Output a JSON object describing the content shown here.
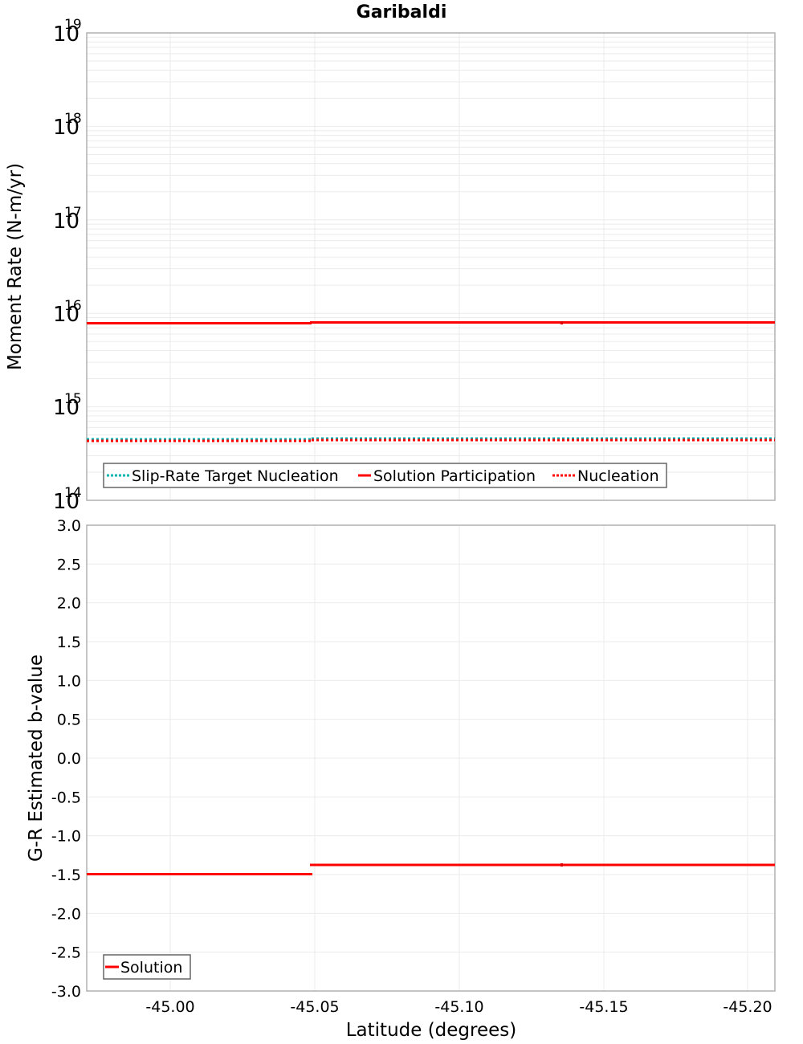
{
  "chart_data": [
    {
      "type": "line",
      "title": "Garibaldi",
      "xlabel": "Latitude (degrees)",
      "ylabel": "Moment Rate (N-m/yr)",
      "yscale": "log",
      "ylim": [
        100000000000000.0,
        1e+19
      ],
      "xlim": [
        -44.971,
        -45.209
      ],
      "x_reversed": true,
      "ytick_labels": [
        {
          "base": "10",
          "exp": "19",
          "value": 1e+19
        },
        {
          "base": "10",
          "exp": "18",
          "value": 1e+18
        },
        {
          "base": "10",
          "exp": "17",
          "value": 1e+17
        },
        {
          "base": "10",
          "exp": "16",
          "value": 1e+16
        },
        {
          "base": "10",
          "exp": "15",
          "value": 1000000000000000.0
        },
        {
          "base": "10",
          "exp": "14",
          "value": 100000000000000.0
        }
      ],
      "grid": true,
      "legend_position": "lower-left",
      "series": [
        {
          "name": "Slip-Rate Target Nucleation",
          "color": "#00b4b4",
          "style": "dotted",
          "segments": [
            {
              "x": [
                -44.971,
                -45.049
              ],
              "y": 430000000000000.0
            },
            {
              "x": [
                -45.049,
                -45.209
              ],
              "y": 440000000000000.0
            }
          ]
        },
        {
          "name": "Solution Participation",
          "color": "#ff0000",
          "style": "solid",
          "segments": [
            {
              "x": [
                -44.971,
                -45.049
              ],
              "y": 7700000000000000.0
            },
            {
              "x": [
                -45.049,
                -45.209
              ],
              "y": 7900000000000000.0
            }
          ]
        },
        {
          "name": "Nucleation",
          "color": "#ff0000",
          "style": "dotted",
          "segments": [
            {
              "x": [
                -44.971,
                -45.049
              ],
              "y": 420000000000000.0
            },
            {
              "x": [
                -45.049,
                -45.209
              ],
              "y": 440000000000000.0
            }
          ]
        }
      ]
    },
    {
      "type": "line",
      "title": "",
      "xlabel": "Latitude (degrees)",
      "ylabel": "G-R Estimated b-value",
      "ylim": [
        -3.0,
        3.0
      ],
      "xlim": [
        -44.971,
        -45.209
      ],
      "x_reversed": true,
      "yticks": [
        "3.0",
        "2.5",
        "2.0",
        "1.5",
        "1.0",
        "0.5",
        "0.0",
        "-0.5",
        "-1.0",
        "-1.5",
        "-2.0",
        "-2.5",
        "-3.0"
      ],
      "xticks": [
        "-45.00",
        "-45.05",
        "-45.10",
        "-45.15",
        "-45.20"
      ],
      "grid": true,
      "legend_position": "lower-left",
      "series": [
        {
          "name": "Solution",
          "color": "#ff0000",
          "style": "solid",
          "segments": [
            {
              "x": [
                -44.971,
                -45.049
              ],
              "y": -1.49
            },
            {
              "x": [
                -45.049,
                -45.209
              ],
              "y": -1.37
            }
          ]
        }
      ]
    }
  ],
  "labels": {
    "title": "Garibaldi",
    "top_ylabel": "Moment Rate (N-m/yr)",
    "bottom_ylabel": "G-R Estimated b-value",
    "xlabel": "Latitude (degrees)",
    "legend_top": [
      "Slip-Rate Target Nucleation",
      "Solution Participation",
      "Nucleation"
    ],
    "legend_bottom": [
      "Solution"
    ],
    "log_base": "10",
    "log_exps": [
      "19",
      "18",
      "17",
      "16",
      "15",
      "14"
    ],
    "yticks_bottom": [
      "3.0",
      "2.5",
      "2.0",
      "1.5",
      "1.0",
      "0.5",
      "0.0",
      "-0.5",
      "-1.0",
      "-1.5",
      "-2.0",
      "-2.5",
      "-3.0"
    ],
    "xticks": [
      "-45.00",
      "-45.05",
      "-45.10",
      "-45.15",
      "-45.20"
    ]
  },
  "colors": {
    "red": "#ff0000",
    "cyan": "#00b4b4",
    "grid": "#ebebeb",
    "frame": "#b0b0b0",
    "legend_border": "#666666"
  }
}
